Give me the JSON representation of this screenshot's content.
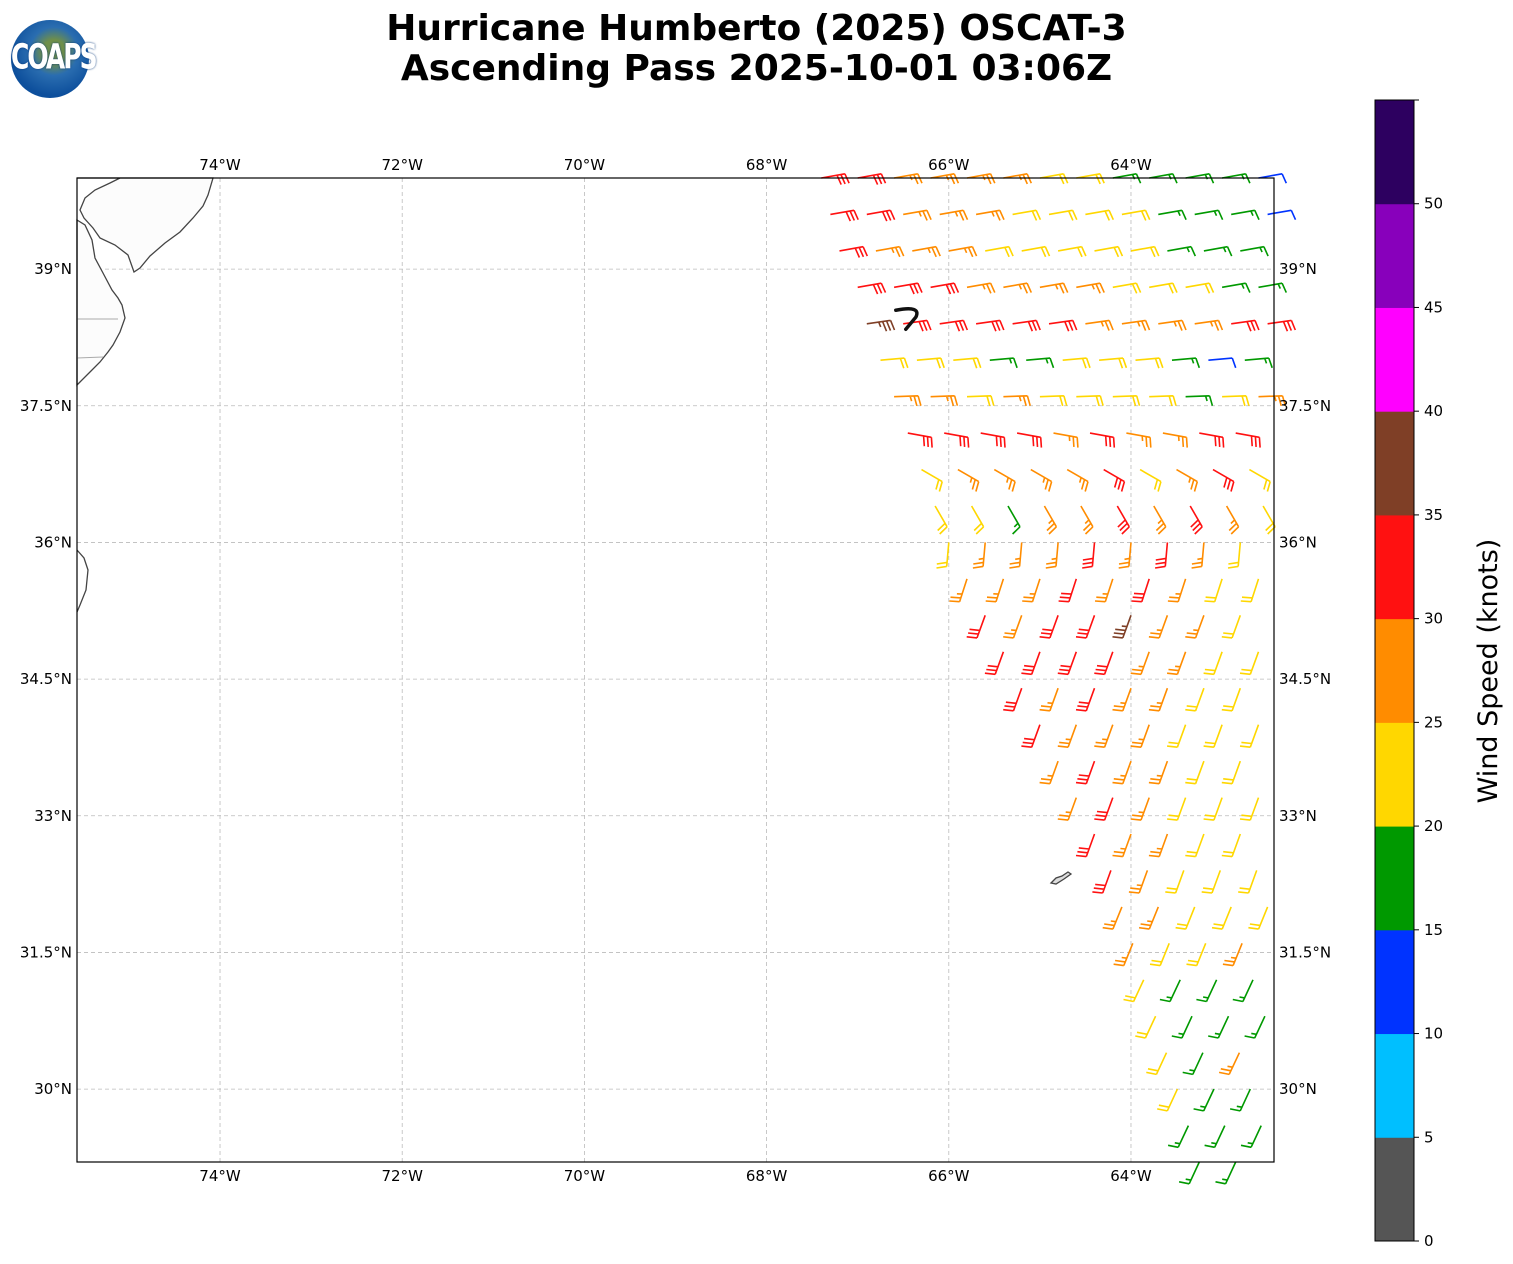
{
  "title": {
    "line1": "Hurricane Humberto (2025) OSCAT-3",
    "line2": "Ascending Pass 2025-10-01 03:06Z"
  },
  "logo": {
    "text": "COAPS"
  },
  "chart_data": {
    "type": "wind-barb-map",
    "extent": {
      "lon": [
        -75.57,
        -62.43
      ],
      "lat": [
        29.2,
        40.0
      ]
    },
    "lon_ticks": [
      {
        "v": -74,
        "label": "74°W"
      },
      {
        "v": -72,
        "label": "72°W"
      },
      {
        "v": -70,
        "label": "70°W"
      },
      {
        "v": -68,
        "label": "68°W"
      },
      {
        "v": -66,
        "label": "66°W"
      },
      {
        "v": -64,
        "label": "64°W"
      }
    ],
    "lat_ticks": [
      {
        "v": 39,
        "label": "39°N"
      },
      {
        "v": 37.5,
        "label": "37.5°N"
      },
      {
        "v": 36,
        "label": "36°N"
      },
      {
        "v": 34.5,
        "label": "34.5°N"
      },
      {
        "v": 33,
        "label": "33°N"
      },
      {
        "v": 31.5,
        "label": "31.5°N"
      },
      {
        "v": 30,
        "label": "30°N"
      }
    ],
    "grid": true,
    "colorbar": {
      "label": "Wind Speed (knots)",
      "bounds": [
        0,
        5,
        10,
        15,
        20,
        25,
        30,
        35,
        40,
        45,
        50,
        55
      ],
      "colors": [
        "#555555",
        "#00bfff",
        "#0033ff",
        "#009900",
        "#ffd700",
        "#ff8c00",
        "#ff1111",
        "#7f3f26",
        "#ff00ff",
        "#8800bb",
        "#2d0060"
      ],
      "ticks": [
        "0",
        "5",
        "10",
        "15",
        "20",
        "25",
        "30",
        "35",
        "40",
        "45",
        "50"
      ],
      "placement": "right"
    },
    "storm_center": {
      "lon": -66.45,
      "lat": 38.45
    },
    "grid_step_deg": 0.4,
    "barb_rows": [
      {
        "lat": 40.0,
        "lon0": -67.4,
        "dir": 80,
        "kt": [
          32,
          32,
          27,
          27,
          27,
          27,
          22,
          22,
          17,
          17,
          17,
          17,
          12
        ]
      },
      {
        "lat": 39.6,
        "lon0": -67.3,
        "dir": 80,
        "kt": [
          32,
          32,
          27,
          27,
          27,
          22,
          22,
          22,
          22,
          17,
          17,
          17,
          12
        ]
      },
      {
        "lat": 39.2,
        "lon0": -67.2,
        "dir": 80,
        "kt": [
          32,
          27,
          27,
          27,
          22,
          22,
          22,
          22,
          22,
          17,
          17,
          17
        ]
      },
      {
        "lat": 38.8,
        "lon0": -67.0,
        "dir": 80,
        "kt": [
          32,
          32,
          32,
          27,
          27,
          27,
          27,
          22,
          22,
          22,
          17,
          17
        ]
      },
      {
        "lat": 38.4,
        "lon0": -66.9,
        "dir": 82,
        "kt": [
          37,
          32,
          32,
          32,
          32,
          32,
          27,
          27,
          27,
          27,
          32,
          32
        ]
      },
      {
        "lat": 38.0,
        "lon0": -66.75,
        "dir": 85,
        "kt": [
          22,
          22,
          22,
          17,
          17,
          22,
          22,
          22,
          17,
          12,
          17
        ]
      },
      {
        "lat": 37.6,
        "lon0": -66.6,
        "dir": 88,
        "kt": [
          27,
          27,
          22,
          27,
          22,
          22,
          22,
          22,
          17,
          22,
          27
        ]
      },
      {
        "lat": 37.2,
        "lon0": -66.45,
        "dir": 100,
        "kt": [
          32,
          32,
          32,
          32,
          27,
          32,
          27,
          27,
          32,
          32
        ]
      },
      {
        "lat": 36.8,
        "lon0": -66.3,
        "dir": 120,
        "kt": [
          22,
          27,
          27,
          27,
          27,
          32,
          22,
          27,
          32,
          22
        ]
      },
      {
        "lat": 36.4,
        "lon0": -66.15,
        "dir": 150,
        "kt": [
          22,
          22,
          17,
          27,
          27,
          32,
          27,
          32,
          27,
          22
        ]
      },
      {
        "lat": 36.0,
        "lon0": -66.0,
        "dir": 185,
        "kt": [
          22,
          27,
          27,
          27,
          32,
          27,
          32,
          27,
          22
        ]
      },
      {
        "lat": 35.6,
        "lon0": -65.8,
        "dir": 198,
        "kt": [
          27,
          27,
          27,
          32,
          27,
          32,
          27,
          22,
          22
        ]
      },
      {
        "lat": 35.2,
        "lon0": -65.6,
        "dir": 200,
        "kt": [
          32,
          27,
          32,
          32,
          37,
          27,
          27,
          22
        ]
      },
      {
        "lat": 34.8,
        "lon0": -65.4,
        "dir": 200,
        "kt": [
          32,
          32,
          32,
          32,
          27,
          27,
          22,
          22
        ]
      },
      {
        "lat": 34.4,
        "lon0": -65.2,
        "dir": 200,
        "kt": [
          32,
          27,
          32,
          27,
          27,
          22,
          22
        ]
      },
      {
        "lat": 34.0,
        "lon0": -65.0,
        "dir": 200,
        "kt": [
          32,
          27,
          27,
          27,
          22,
          22,
          22
        ]
      },
      {
        "lat": 33.6,
        "lon0": -64.8,
        "dir": 200,
        "kt": [
          27,
          32,
          27,
          27,
          22,
          22
        ]
      },
      {
        "lat": 33.2,
        "lon0": -64.6,
        "dir": 200,
        "kt": [
          27,
          32,
          27,
          22,
          22,
          22
        ]
      },
      {
        "lat": 32.8,
        "lon0": -64.4,
        "dir": 200,
        "kt": [
          32,
          27,
          27,
          22,
          22
        ]
      },
      {
        "lat": 32.4,
        "lon0": -64.22,
        "dir": 200,
        "kt": [
          32,
          27,
          22,
          22,
          22
        ]
      },
      {
        "lat": 32.0,
        "lon0": -64.1,
        "dir": 202,
        "kt": [
          27,
          27,
          22,
          22,
          22
        ]
      },
      {
        "lat": 31.6,
        "lon0": -63.98,
        "dir": 202,
        "kt": [
          27,
          22,
          22,
          27
        ]
      },
      {
        "lat": 31.2,
        "lon0": -63.86,
        "dir": 205,
        "kt": [
          22,
          17,
          17,
          17
        ]
      },
      {
        "lat": 30.8,
        "lon0": -63.73,
        "dir": 205,
        "kt": [
          22,
          17,
          17,
          17
        ]
      },
      {
        "lat": 30.4,
        "lon0": -63.61,
        "dir": 205,
        "kt": [
          22,
          17,
          27
        ]
      },
      {
        "lat": 30.0,
        "lon0": -63.49,
        "dir": 205,
        "kt": [
          22,
          17,
          17
        ]
      },
      {
        "lat": 29.6,
        "lon0": -63.37,
        "dir": 205,
        "kt": [
          17,
          17,
          17
        ]
      },
      {
        "lat": 29.2,
        "lon0": -63.25,
        "dir": 205,
        "kt": [
          17,
          17
        ]
      }
    ]
  }
}
